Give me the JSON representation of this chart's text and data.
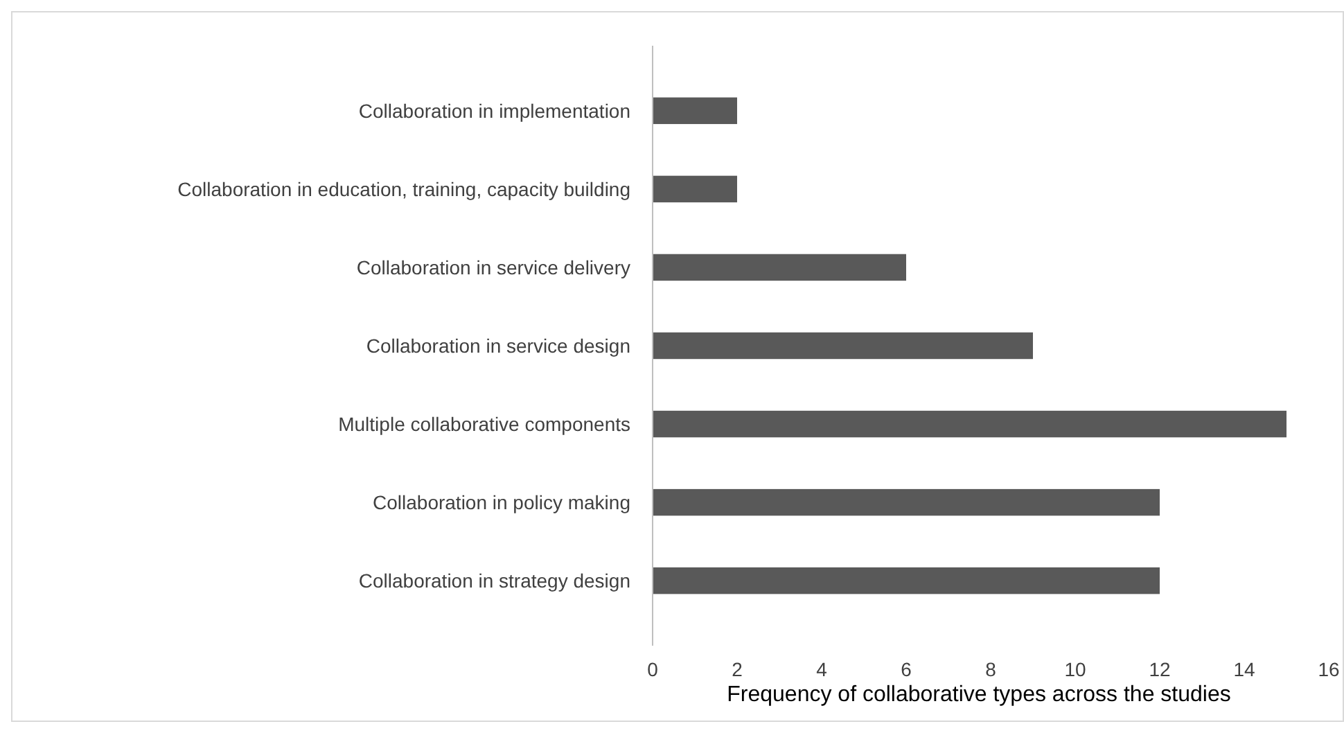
{
  "chart_data": {
    "type": "bar",
    "orientation": "horizontal",
    "xlabel": "Frequency of collaborative types across the studies",
    "categories": [
      "Collaboration in implementation",
      "Collaboration in education, training, capacity building",
      "Collaboration in service delivery",
      "Collaboration in service design",
      "Multiple collaborative components",
      "Collaboration in policy making",
      "Collaboration in strategy design"
    ],
    "values": [
      2,
      2,
      6,
      9,
      15,
      12,
      12
    ],
    "color": "#595959",
    "xlim": [
      0,
      16
    ],
    "xticks": [
      0,
      2,
      4,
      6,
      8,
      10,
      12,
      14,
      16
    ],
    "grid": false
  }
}
